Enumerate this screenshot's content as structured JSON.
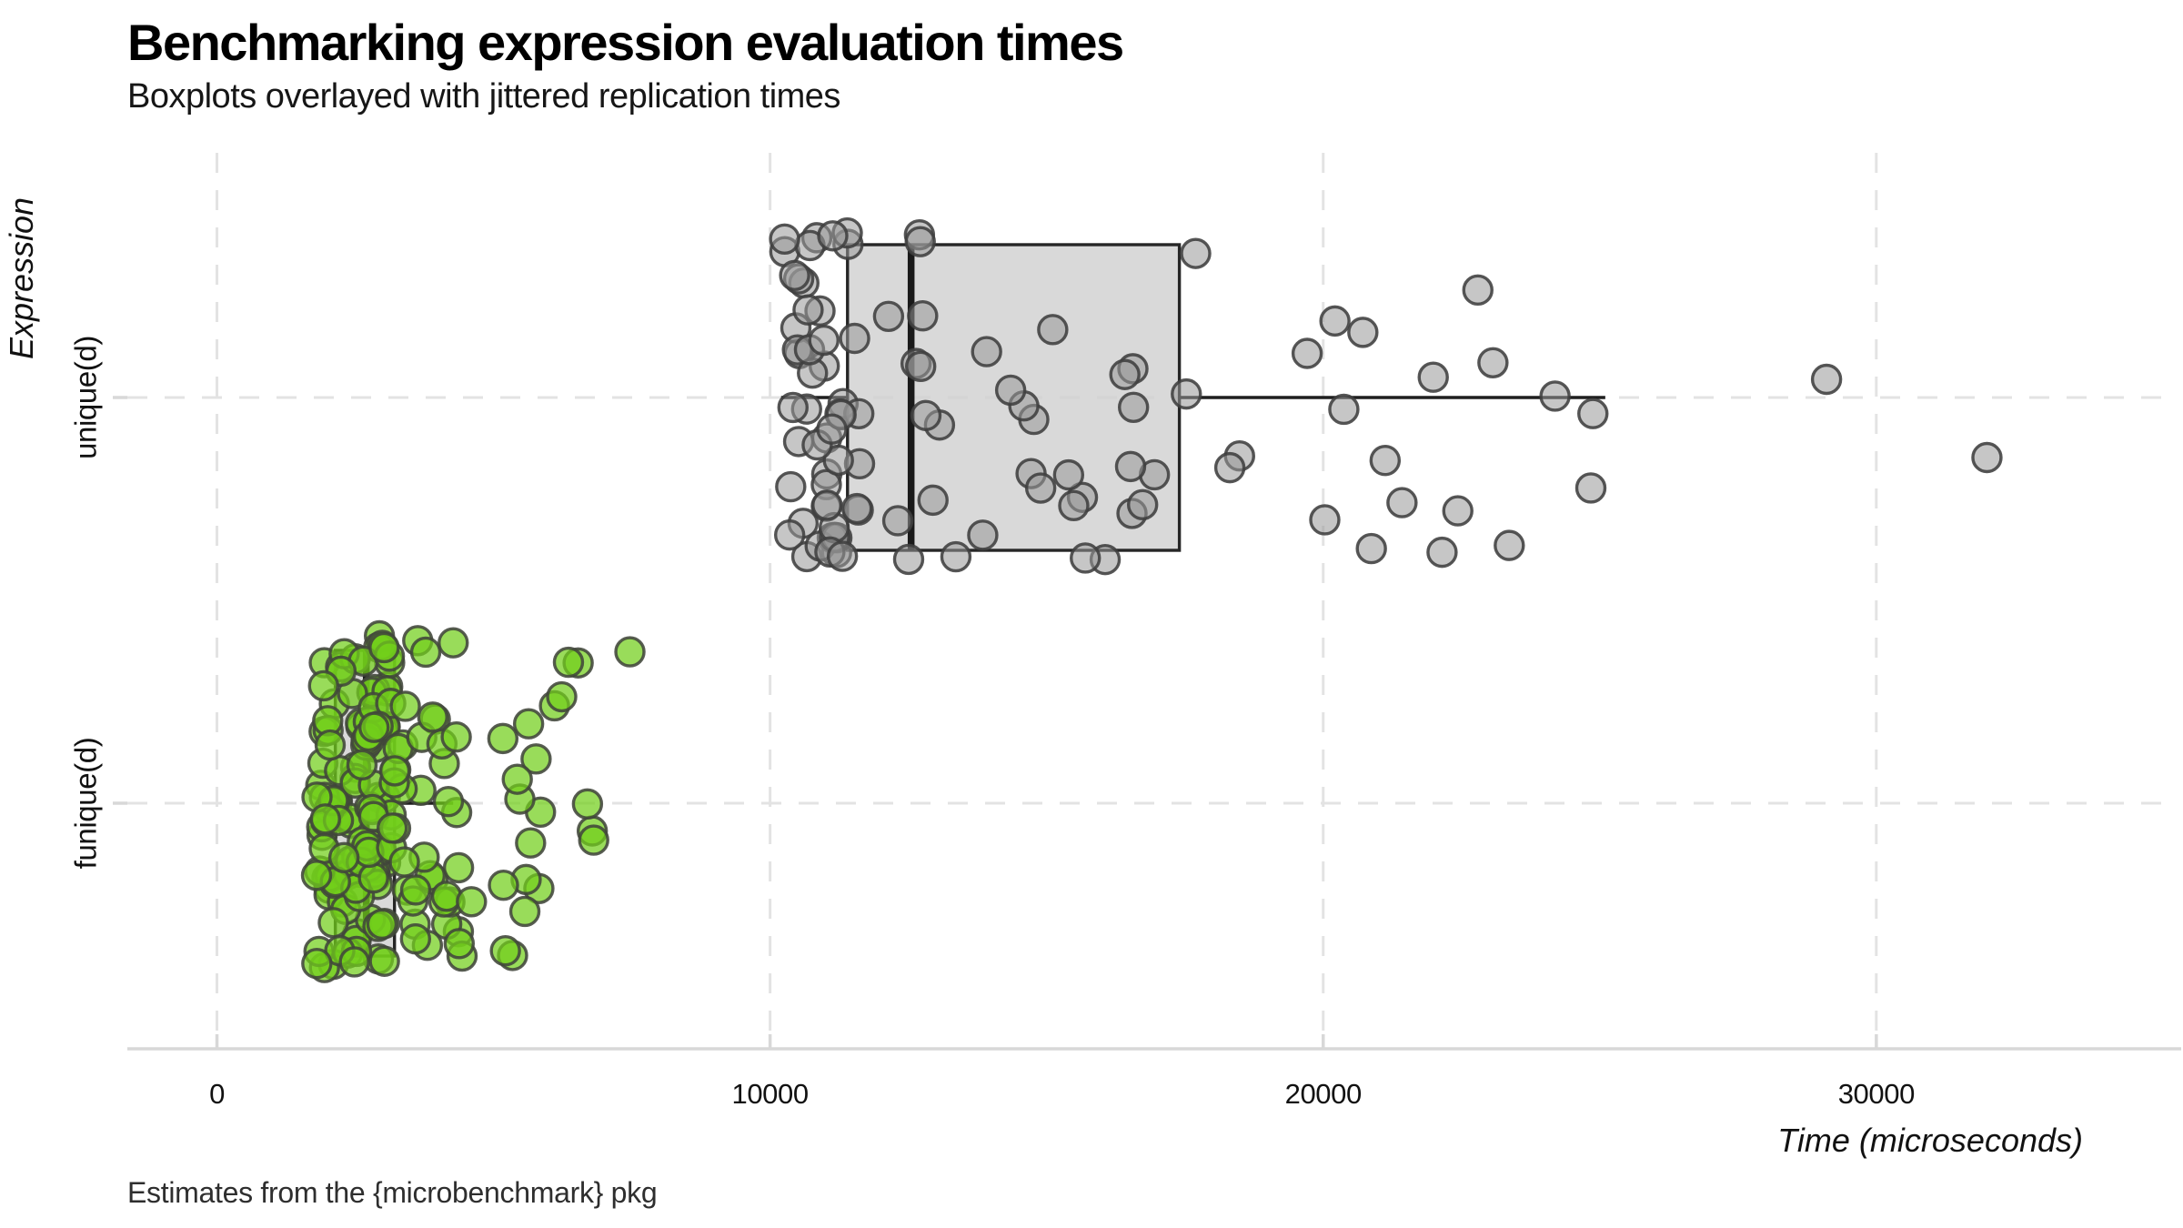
{
  "page": {
    "background": "#ffffff"
  },
  "chart_data": {
    "type": "boxplot",
    "orientation": "horizontal",
    "title": "Benchmarking expression evaluation times",
    "subtitle": "Boxplots overlayed with jittered replication times",
    "caption": "Estimates from the {microbenchmark} pkg",
    "xlabel": "Time (microseconds)",
    "ylabel": "Expression",
    "x_ticks": [
      {
        "value": 0,
        "label": "0"
      },
      {
        "value": 10000,
        "label": "10000"
      },
      {
        "value": 20000,
        "label": "20000"
      },
      {
        "value": 30000,
        "label": "30000"
      }
    ],
    "xlim": [
      -1620,
      35380
    ],
    "grid": {
      "style": "dashed",
      "color": "#e3e3e3",
      "dash": "22 19",
      "width": 3
    },
    "axis": {
      "line_color": "#d8d8d8",
      "tick_color": "#d8d8d8",
      "tick_length": 16,
      "line_width": 3.5
    },
    "legend": "none",
    "seed": 7,
    "point_radius": 15.5,
    "point_stroke_width": 3.4,
    "series": [
      {
        "name": "unique(d)",
        "box": {
          "min": 10200,
          "q1": 11400,
          "median": 12550,
          "q3": 17400,
          "whisker_high": 25100
        },
        "outliers": [
          {
            "x": 29100,
            "dy": -20
          },
          {
            "x": 32000,
            "dy": 66
          }
        ],
        "n_replications": 105,
        "style": {
          "point_fill": "#989898",
          "point_opacity": 0.55,
          "point_stroke": "#3f3f3f",
          "box_fill": "#d0d0d0",
          "box_opacity": 0.8,
          "box_stroke": "#262626",
          "median_color": "#1a1a1a",
          "whisker_color": "#1f1f1f"
        },
        "jitter_segments": [
          {
            "n": 50,
            "x": [
              10250,
              11650
            ],
            "dy": [
              -183,
              183
            ]
          },
          {
            "n": 34,
            "x": [
              11650,
              17800
            ],
            "dy": [
              -180,
              180
            ]
          },
          {
            "n": 19,
            "x": [
              17800,
              25400
            ],
            "dy": [
              -175,
              175
            ]
          }
        ]
      },
      {
        "name": "funique(d)",
        "box": {
          "min": 1810,
          "q1": 2140,
          "median": 2700,
          "q3": 3210,
          "whisker_high": 4270
        },
        "outliers": [],
        "n_replications": 182,
        "style": {
          "point_fill": "#72cf1a",
          "point_opacity": 0.72,
          "point_stroke": "#41463b",
          "box_fill": "#d0d0d0",
          "box_opacity": 0.8,
          "box_stroke": "#262626",
          "median_color": "#1a1a1a",
          "whisker_color": "#1f1f1f"
        },
        "jitter_segments": [
          {
            "n": 120,
            "x": [
              1800,
              3150
            ],
            "dy": [
              -185,
              185
            ]
          },
          {
            "n": 40,
            "x": [
              3150,
              4450
            ],
            "dy": [
              -182,
              182
            ]
          },
          {
            "n": 16,
            "x": [
              4450,
              6250
            ],
            "dy": [
              -170,
              182
            ]
          },
          {
            "n": 3,
            "x": [
              6250,
              7700
            ],
            "dy": [
              -168,
              -152
            ]
          },
          {
            "n": 3,
            "x": [
              6500,
              7400
            ],
            "dy": [
              -8,
              52
            ]
          }
        ]
      }
    ]
  }
}
